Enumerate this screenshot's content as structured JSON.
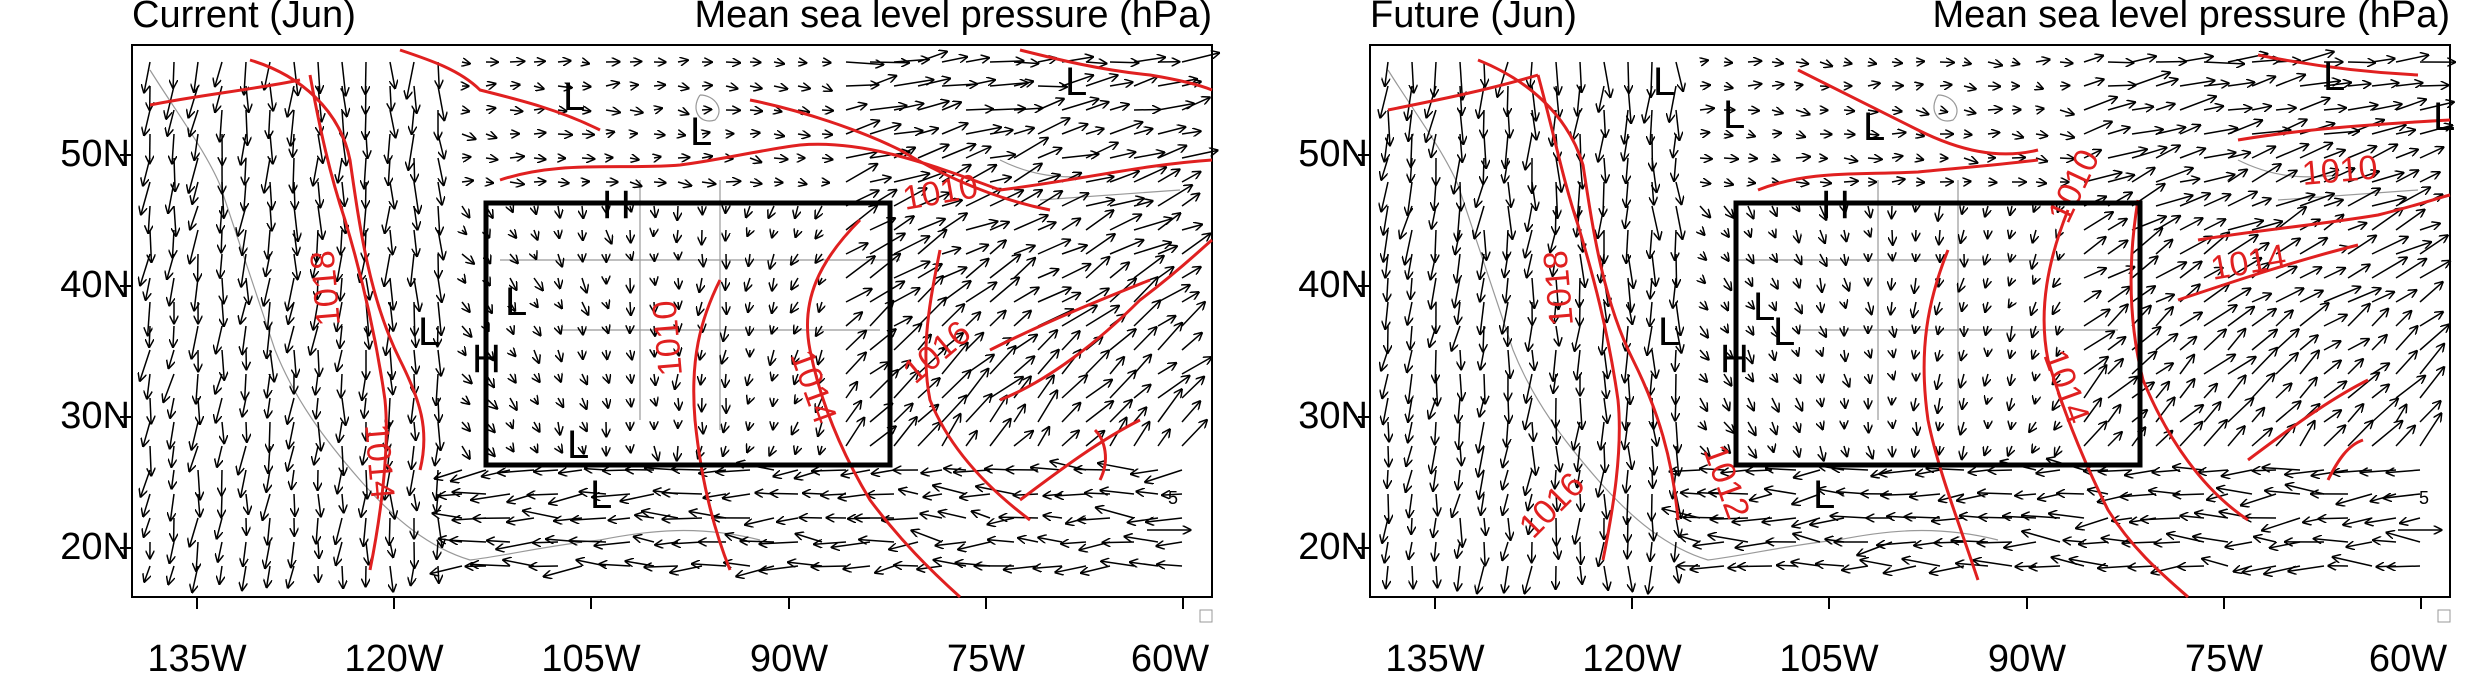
{
  "panels": [
    {
      "title_left": "Current (Jun)",
      "title_right": "Mean sea level pressure (hPa)",
      "lat_labels": [
        "50N",
        "40N",
        "30N",
        "20N"
      ],
      "lon_labels": [
        "135W",
        "120W",
        "105W",
        "90W",
        "75W",
        "60W"
      ],
      "isobar_labels": [
        "1010",
        "1016",
        "1018",
        "1010",
        "1014",
        "1014"
      ],
      "low_markers": 7,
      "high_markers": 2,
      "reference_vector_label": "5"
    },
    {
      "title_left": "Future (Jun)",
      "title_right": "Mean sea level pressure (hPa)",
      "lat_labels": [
        "50N",
        "40N",
        "30N",
        "20N"
      ],
      "lon_labels": [
        "135W",
        "120W",
        "105W",
        "90W",
        "75W",
        "60W"
      ],
      "isobar_labels": [
        "1010",
        "1010",
        "1014",
        "1018",
        "1014",
        "1016",
        "1012"
      ],
      "low_markers": 9,
      "high_markers": 2,
      "reference_vector_label": "5"
    }
  ],
  "colors": {
    "isobar": "#e02020",
    "vector": "#000000",
    "coast": "#888888",
    "frame": "#000000"
  },
  "map_extent": {
    "lon": [
      -140,
      -58
    ],
    "lat": [
      16,
      59
    ]
  },
  "analysis_box": {
    "lon": [
      -113,
      -82
    ],
    "lat": [
      26.5,
      46.5
    ]
  }
}
